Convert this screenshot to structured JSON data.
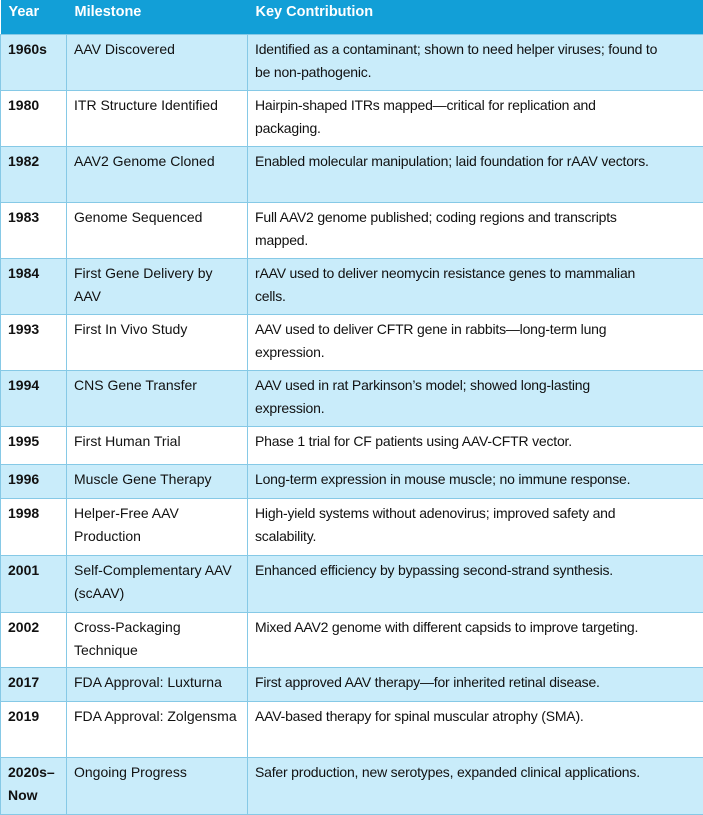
{
  "headers": [
    "Year",
    "Milestone",
    "Key Contribution"
  ],
  "colors": {
    "header": "#129fd7",
    "row_alt": "#c9ecfa",
    "border": "#86c9e6"
  },
  "rows": [
    {
      "year": "1960s",
      "milestone": "AAV Discovered",
      "contribution": "Identified as a contaminant; shown to need helper viruses; found to be non-pathogenic."
    },
    {
      "year": "1980",
      "milestone": "ITR Structure Identified",
      "contribution": "Hairpin-shaped ITRs mapped—critical for replication and packaging."
    },
    {
      "year": "1982",
      "milestone": "AAV2 Genome Cloned",
      "contribution": "Enabled molecular manipulation; laid foundation for rAAV vectors."
    },
    {
      "year": "1983",
      "milestone": "Genome Sequenced",
      "contribution": "Full AAV2 genome published; coding regions and transcripts mapped."
    },
    {
      "year": "1984",
      "milestone": "First Gene Delivery by AAV",
      "contribution": "rAAV used to deliver neomycin resistance genes to mammalian cells."
    },
    {
      "year": "1993",
      "milestone": "First In Vivo Study",
      "contribution": "AAV used to deliver CFTR gene in rabbits—long-term lung expression."
    },
    {
      "year": "1994",
      "milestone": "CNS Gene Transfer",
      "contribution": "AAV used in rat Parkinson’s model; showed long-lasting expression."
    },
    {
      "year": "1995",
      "milestone": "First Human Trial",
      "contribution": "Phase 1 trial for CF patients using AAV-CFTR vector."
    },
    {
      "year": "1996",
      "milestone": "Muscle Gene Therapy",
      "contribution": "Long-term expression in mouse muscle; no immune response."
    },
    {
      "year": "1998",
      "milestone": "Helper-Free AAV Production",
      "contribution": "High-yield systems without adenovirus; improved safety and scalability."
    },
    {
      "year": "2001",
      "milestone": "Self-Complementary AAV (scAAV)",
      "contribution": "Enhanced efficiency by bypassing second-strand synthesis."
    },
    {
      "year": "2002",
      "milestone": "Cross-Packaging Technique",
      "contribution": "Mixed AAV2 genome with different capsids to improve targeting."
    },
    {
      "year": "2017",
      "milestone": "FDA Approval: Luxturna",
      "contribution": "First approved AAV therapy—for inherited retinal disease."
    },
    {
      "year": "2019",
      "milestone": "FDA Approval: Zolgensma",
      "contribution": "AAV-based therapy for spinal muscular atrophy (SMA)."
    },
    {
      "year": "2020s–Now",
      "milestone": "Ongoing Progress",
      "contribution": "Safer production, new serotypes, expanded clinical applications."
    }
  ]
}
